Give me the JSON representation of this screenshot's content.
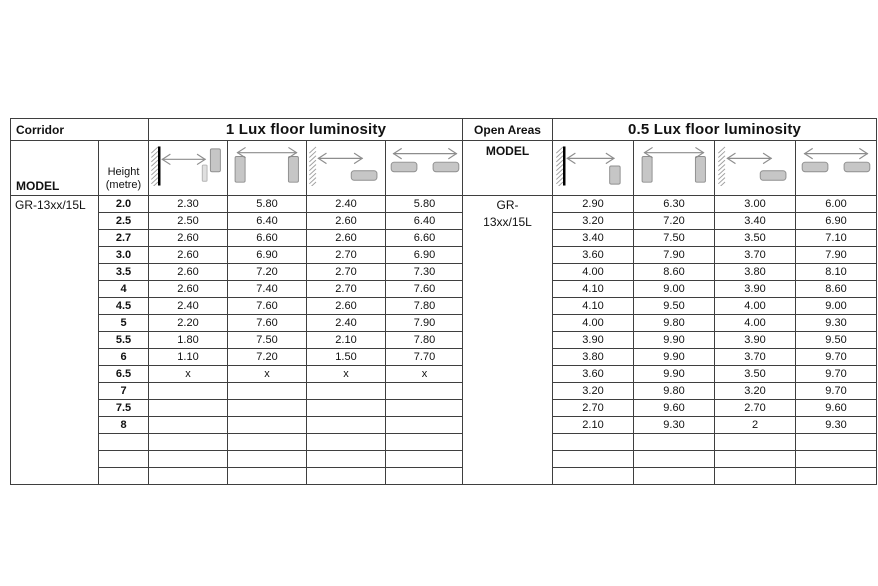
{
  "page": {
    "background": "#ffffff"
  },
  "colors": {
    "grid": "#3f3f3f",
    "detector_fill": "#c6c6c6",
    "detector_stroke": "#8f8f8f",
    "detector_fill_light": "#e0e0e0",
    "detector_stroke_light": "#b4b4b4",
    "arrow": "#8d8d8d",
    "hatch": "#a0a0a0",
    "wall": "#000000",
    "text": "#111111"
  },
  "corridor_section": {
    "title": "Corridor",
    "lux_header": "1 Lux floor luminosity",
    "model_label": "MODEL",
    "height_label": "Height (metre)",
    "model_value": "GR-13xx/15L",
    "icons": [
      {
        "name": "wall-to-detector-coverage-icon",
        "type": "wall-vert-detector-pair"
      },
      {
        "name": "detector-to-detector-coverage-icon",
        "type": "vert-detector-pair"
      },
      {
        "name": "wall-to-ceiling-detector-coverage-icon",
        "type": "wall-ceiling-detector"
      },
      {
        "name": "ceiling-detector-spacing-icon",
        "type": "ceiling-detector-pair"
      }
    ],
    "rows": [
      {
        "height": "2.0",
        "values": [
          "2.30",
          "5.80",
          "2.40",
          "5.80"
        ]
      },
      {
        "height": "2.5",
        "values": [
          "2.50",
          "6.40",
          "2.60",
          "6.40"
        ]
      },
      {
        "height": "2.7",
        "values": [
          "2.60",
          "6.60",
          "2.60",
          "6.60"
        ]
      },
      {
        "height": "3.0",
        "values": [
          "2.60",
          "6.90",
          "2.70",
          "6.90"
        ]
      },
      {
        "height": "3.5",
        "values": [
          "2.60",
          "7.20",
          "2.70",
          "7.30"
        ]
      },
      {
        "height": "4",
        "values": [
          "2.60",
          "7.40",
          "2.70",
          "7.60"
        ]
      },
      {
        "height": "4.5",
        "values": [
          "2.40",
          "7.60",
          "2.60",
          "7.80"
        ]
      },
      {
        "height": "5",
        "values": [
          "2.20",
          "7.60",
          "2.40",
          "7.90"
        ]
      },
      {
        "height": "5.5",
        "values": [
          "1.80",
          "7.50",
          "2.10",
          "7.80"
        ]
      },
      {
        "height": "6",
        "values": [
          "1.10",
          "7.20",
          "1.50",
          "7.70"
        ]
      },
      {
        "height": "6.5",
        "values": [
          "x",
          "x",
          "x",
          "x"
        ]
      },
      {
        "height": "7",
        "values": [
          "",
          "",
          "",
          ""
        ]
      },
      {
        "height": "7.5",
        "values": [
          "",
          "",
          "",
          ""
        ]
      },
      {
        "height": "8",
        "values": [
          "",
          "",
          "",
          ""
        ]
      },
      {
        "height": "",
        "values": [
          "",
          "",
          "",
          ""
        ]
      },
      {
        "height": "",
        "values": [
          "",
          "",
          "",
          ""
        ]
      },
      {
        "height": "",
        "values": [
          "",
          "",
          "",
          ""
        ]
      }
    ]
  },
  "open_areas_section": {
    "title": "Open Areas",
    "lux_header": "0.5 Lux floor luminosity",
    "model_label": "MODEL",
    "model_value": "GR-\n13xx/15L",
    "icons": [
      {
        "name": "wall-to-detector-coverage-icon",
        "type": "wall-vert-detector-single"
      },
      {
        "name": "detector-to-detector-coverage-icon",
        "type": "vert-detector-pair"
      },
      {
        "name": "wall-to-ceiling-detector-coverage-icon",
        "type": "wall-ceiling-detector"
      },
      {
        "name": "ceiling-detector-spacing-icon",
        "type": "ceiling-detector-pair"
      }
    ],
    "rows": [
      {
        "values": [
          "2.90",
          "6.30",
          "3.00",
          "6.00"
        ]
      },
      {
        "values": [
          "3.20",
          "7.20",
          "3.40",
          "6.90"
        ]
      },
      {
        "values": [
          "3.40",
          "7.50",
          "3.50",
          "7.10"
        ]
      },
      {
        "values": [
          "3.60",
          "7.90",
          "3.70",
          "7.90"
        ]
      },
      {
        "values": [
          "4.00",
          "8.60",
          "3.80",
          "8.10"
        ]
      },
      {
        "values": [
          "4.10",
          "9.00",
          "3.90",
          "8.60"
        ]
      },
      {
        "values": [
          "4.10",
          "9.50",
          "4.00",
          "9.00"
        ]
      },
      {
        "values": [
          "4.00",
          "9.80",
          "4.00",
          "9.30"
        ]
      },
      {
        "values": [
          "3.90",
          "9.90",
          "3.90",
          "9.50"
        ]
      },
      {
        "values": [
          "3.80",
          "9.90",
          "3.70",
          "9.70"
        ]
      },
      {
        "values": [
          "3.60",
          "9.90",
          "3.50",
          "9.70"
        ]
      },
      {
        "values": [
          "3.20",
          "9.80",
          "3.20",
          "9.70"
        ]
      },
      {
        "values": [
          "2.70",
          "9.60",
          "2.70",
          "9.60"
        ]
      },
      {
        "values": [
          "2.10",
          "9.30",
          "2",
          "9.30"
        ]
      },
      {
        "values": [
          "",
          "",
          "",
          ""
        ]
      },
      {
        "values": [
          "",
          "",
          "",
          ""
        ]
      },
      {
        "values": [
          "",
          "",
          "",
          ""
        ]
      }
    ]
  }
}
